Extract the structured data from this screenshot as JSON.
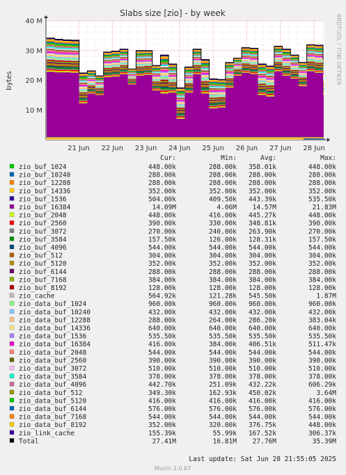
{
  "title": "Slabs size [zio] - by week",
  "ylabel": "bytes",
  "side_label": "RRDTOOL / TOBI OETIKER",
  "munin_version": "Munin 2.0.67",
  "last_update": "Last update: Sat Jun 28 21:55:05 2025",
  "headers": {
    "cur": "Cur:",
    "min": "Min:",
    "avg": "Avg:",
    "max": "Max:"
  },
  "chart_data": {
    "type": "area",
    "title": "Slabs size [zio] - by week",
    "ylabel": "bytes",
    "ylim": [
      0,
      40000000
    ],
    "yticks": [
      {
        "value": 10000000,
        "label": "10 M"
      },
      {
        "value": 20000000,
        "label": "20 M"
      },
      {
        "value": 30000000,
        "label": "30 M"
      },
      {
        "value": 40000000,
        "label": "40 M"
      }
    ],
    "xticks": [
      "21 Jun",
      "22 Jun",
      "23 Jun",
      "24 Jun",
      "25 Jun",
      "26 Jun",
      "27 Jun",
      "28 Jun"
    ],
    "grid": true,
    "stacked": true,
    "x": [
      "Jun 20 06:00",
      "Jun 20 12:00",
      "Jun 20 18:00",
      "Jun 21 00:00",
      "Jun 21 06:00",
      "Jun 21 12:00",
      "Jun 21 18:00",
      "Jun 22 00:00",
      "Jun 22 06:00",
      "Jun 22 12:00",
      "Jun 22 18:00",
      "Jun 23 00:00",
      "Jun 23 06:00",
      "Jun 23 12:00",
      "Jun 23 18:00",
      "Jun 24 00:00",
      "Jun 24 06:00",
      "Jun 24 12:00",
      "Jun 24 18:00",
      "Jun 25 00:00",
      "Jun 25 06:00",
      "Jun 25 12:00",
      "Jun 25 18:00",
      "Jun 26 00:00",
      "Jun 26 06:00",
      "Jun 26 12:00",
      "Jun 26 18:00",
      "Jun 27 00:00",
      "Jun 27 06:00",
      "Jun 27 12:00",
      "Jun 27 18:00",
      "Jun 28 00:00",
      "Jun 28 06:00",
      "Jun 28 12:00",
      "Jun 28 18:00"
    ],
    "series": [
      {
        "name": "zio_buf_1024",
        "color": "#00cc00",
        "cur": "448.00k",
        "min": "288.00k",
        "avg": "358.01k",
        "max": "448.00k"
      },
      {
        "name": "zio_buf_10240",
        "color": "#0066b3",
        "cur": "288.00k",
        "min": "288.00k",
        "avg": "288.00k",
        "max": "288.00k"
      },
      {
        "name": "zio_buf_12288",
        "color": "#ff8000",
        "cur": "288.00k",
        "min": "288.00k",
        "avg": "288.00k",
        "max": "288.00k"
      },
      {
        "name": "zio_buf_14336",
        "color": "#ffcc00",
        "cur": "352.00k",
        "min": "352.00k",
        "avg": "352.00k",
        "max": "352.00k"
      },
      {
        "name": "zio_buf_1536",
        "color": "#330099",
        "cur": "504.00k",
        "min": "409.50k",
        "avg": "443.39k",
        "max": "535.50k"
      },
      {
        "name": "zio_buf_16384",
        "color": "#990099",
        "cur": "14.09M",
        "min": "4.06M",
        "avg": "14.57M",
        "max": "21.83M"
      },
      {
        "name": "zio_buf_2048",
        "color": "#ccff00",
        "cur": "448.00k",
        "min": "416.00k",
        "avg": "445.27k",
        "max": "448.00k"
      },
      {
        "name": "zio_buf_2560",
        "color": "#ff0000",
        "cur": "390.00k",
        "min": "330.00k",
        "avg": "348.81k",
        "max": "390.00k"
      },
      {
        "name": "zio_buf_3072",
        "color": "#808080",
        "cur": "270.00k",
        "min": "240.00k",
        "avg": "263.90k",
        "max": "270.00k"
      },
      {
        "name": "zio_buf_3584",
        "color": "#008f00",
        "cur": "157.50k",
        "min": "126.00k",
        "avg": "128.31k",
        "max": "157.50k"
      },
      {
        "name": "zio_buf_4096",
        "color": "#00487d",
        "cur": "544.00k",
        "min": "544.00k",
        "avg": "544.00k",
        "max": "544.00k"
      },
      {
        "name": "zio_buf_512",
        "color": "#b35a00",
        "cur": "304.00k",
        "min": "304.00k",
        "avg": "304.00k",
        "max": "304.00k"
      },
      {
        "name": "zio_buf_5120",
        "color": "#b38f00",
        "cur": "352.00k",
        "min": "352.00k",
        "avg": "352.00k",
        "max": "352.00k"
      },
      {
        "name": "zio_buf_6144",
        "color": "#6b006b",
        "cur": "288.00k",
        "min": "288.00k",
        "avg": "288.00k",
        "max": "288.00k"
      },
      {
        "name": "zio_buf_7168",
        "color": "#8fb300",
        "cur": "384.00k",
        "min": "384.00k",
        "avg": "384.00k",
        "max": "384.00k"
      },
      {
        "name": "zio_buf_8192",
        "color": "#b30000",
        "cur": "128.00k",
        "min": "128.00k",
        "avg": "128.00k",
        "max": "128.00k"
      },
      {
        "name": "zio_cache",
        "color": "#bebebe",
        "cur": "564.92k",
        "min": "121.28k",
        "avg": "545.50k",
        "max": "1.87M"
      },
      {
        "name": "zio_data_buf_1024",
        "color": "#80ff80",
        "cur": "960.00k",
        "min": "960.00k",
        "avg": "960.00k",
        "max": "960.00k"
      },
      {
        "name": "zio_data_buf_10240",
        "color": "#80c9ff",
        "cur": "432.00k",
        "min": "432.00k",
        "avg": "432.00k",
        "max": "432.00k"
      },
      {
        "name": "zio_data_buf_12288",
        "color": "#ffc080",
        "cur": "288.00k",
        "min": "264.00k",
        "avg": "286.20k",
        "max": "383.04k"
      },
      {
        "name": "zio_data_buf_14336",
        "color": "#ffe680",
        "cur": "640.00k",
        "min": "640.00k",
        "avg": "640.00k",
        "max": "640.00k"
      },
      {
        "name": "zio_data_buf_1536",
        "color": "#aa80ff",
        "cur": "535.50k",
        "min": "535.50k",
        "avg": "535.50k",
        "max": "535.50k"
      },
      {
        "name": "zio_data_buf_16384",
        "color": "#ee00cc",
        "cur": "416.00k",
        "min": "384.00k",
        "avg": "406.51k",
        "max": "511.47k"
      },
      {
        "name": "zio_data_buf_2048",
        "color": "#ff8080",
        "cur": "544.00k",
        "min": "544.00k",
        "avg": "544.00k",
        "max": "544.00k"
      },
      {
        "name": "zio_data_buf_2560",
        "color": "#666600",
        "cur": "390.00k",
        "min": "390.00k",
        "avg": "390.00k",
        "max": "390.00k"
      },
      {
        "name": "zio_data_buf_3072",
        "color": "#ffbfff",
        "cur": "510.00k",
        "min": "510.00k",
        "avg": "510.00k",
        "max": "510.00k"
      },
      {
        "name": "zio_data_buf_3584",
        "color": "#00ffcc",
        "cur": "378.00k",
        "min": "378.00k",
        "avg": "378.00k",
        "max": "378.00k"
      },
      {
        "name": "zio_data_buf_4096",
        "color": "#cc6699",
        "cur": "442.70k",
        "min": "251.09k",
        "avg": "432.22k",
        "max": "606.29k"
      },
      {
        "name": "zio_data_buf_512",
        "color": "#999900",
        "cur": "349.30k",
        "min": "162.93k",
        "avg": "450.02k",
        "max": "3.64M"
      },
      {
        "name": "zio_data_buf_5120",
        "color": "#00cc00",
        "cur": "416.00k",
        "min": "416.00k",
        "avg": "416.00k",
        "max": "416.00k"
      },
      {
        "name": "zio_data_buf_6144",
        "color": "#0066b3",
        "cur": "576.00k",
        "min": "576.00k",
        "avg": "576.00k",
        "max": "576.00k"
      },
      {
        "name": "zio_data_buf_7168",
        "color": "#ff8000",
        "cur": "544.00k",
        "min": "544.00k",
        "avg": "544.00k",
        "max": "544.00k"
      },
      {
        "name": "zio_data_buf_8192",
        "color": "#ffcc00",
        "cur": "352.00k",
        "min": "320.00k",
        "avg": "376.75k",
        "max": "448.00k"
      },
      {
        "name": "zio_link_cache",
        "color": "#330099",
        "cur": "155.39k",
        "min": "55.99k",
        "avg": "167.52k",
        "max": "306.37k"
      },
      {
        "name": "Total",
        "color": "#000000",
        "cur": "27.41M",
        "min": "16.81M",
        "avg": "27.76M",
        "max": "35.39M"
      }
    ],
    "total_values": [
      34.2,
      33.8,
      33.6,
      33.5,
      22.5,
      23.2,
      21.5,
      29.5,
      29.8,
      30.5,
      23.8,
      30.0,
      30.0,
      25.0,
      28.5,
      25.5,
      17.5,
      24.5,
      30.5,
      27.0,
      20.5,
      20.3,
      26.0,
      27.5,
      31.0,
      30.8,
      25.5,
      24.8,
      31.5,
      30.5,
      28.5,
      26.0,
      32.0,
      31.8,
      27.4
    ],
    "buf16384_values": [
      21.8,
      21.6,
      21.6,
      21.5,
      11.2,
      14.5,
      14.0,
      20.0,
      20.2,
      21.0,
      17.5,
      20.5,
      20.8,
      15.5,
      14.5,
      14.8,
      6.0,
      14.8,
      21.0,
      14.5,
      9.5,
      9.8,
      16.5,
      20.5,
      21.5,
      21.0,
      14.0,
      13.5,
      22.0,
      20.5,
      19.5,
      17.0,
      22.0,
      21.5,
      14.1
    ]
  }
}
